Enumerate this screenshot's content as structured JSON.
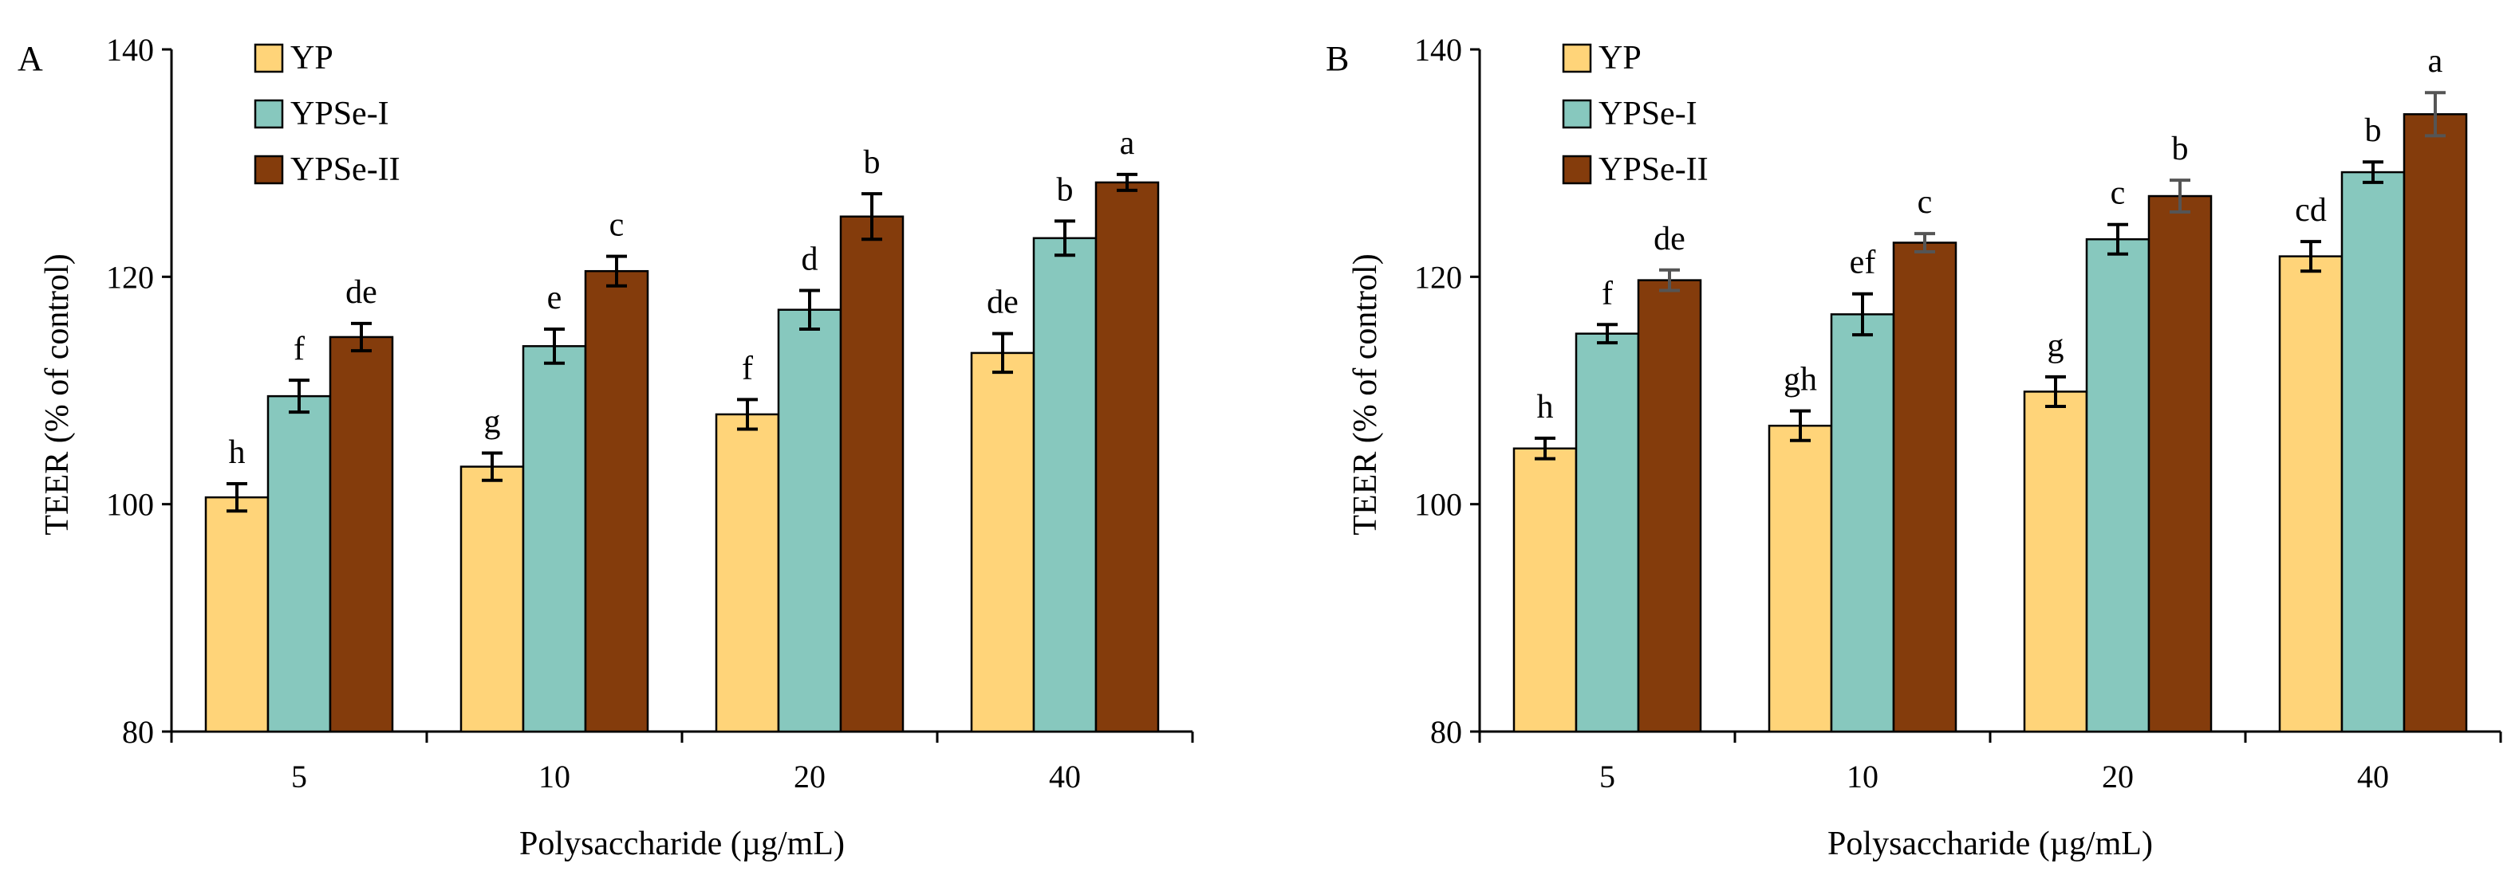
{
  "chart_data": [
    {
      "type": "bar",
      "panel_label": "A",
      "categories": [
        "5",
        "10",
        "20",
        "40"
      ],
      "series": [
        {
          "name": "YP",
          "color": "#FFD479",
          "values": [
            100.6,
            103.3,
            107.9,
            113.3
          ],
          "errors": [
            1.2,
            1.2,
            1.3,
            1.7
          ],
          "letters": [
            "h",
            "g",
            "f",
            "de"
          ]
        },
        {
          "name": "YPSe-I",
          "color": "#87C8BE",
          "values": [
            109.5,
            113.9,
            117.1,
            123.4
          ],
          "errors": [
            1.4,
            1.5,
            1.7,
            1.5
          ],
          "letters": [
            "f",
            "e",
            "d",
            "b"
          ]
        },
        {
          "name": "YPSe-II",
          "color": "#843C0C",
          "values": [
            114.7,
            120.5,
            125.3,
            128.3
          ],
          "errors": [
            1.2,
            1.3,
            2.0,
            0.7
          ],
          "letters": [
            "de",
            "c",
            "b",
            "a"
          ]
        }
      ],
      "title": "",
      "xlabel": "Polysaccharide (µg/mL)",
      "ylabel": "TEER (% of control)",
      "ylim": [
        80,
        140
      ],
      "yticks": [
        "80",
        "100",
        "120",
        "140"
      ],
      "grid": false,
      "legend": "top-left"
    },
    {
      "type": "bar",
      "panel_label": "B",
      "categories": [
        "5",
        "10",
        "20",
        "40"
      ],
      "series": [
        {
          "name": "YP",
          "color": "#FFD479",
          "values": [
            104.9,
            106.9,
            109.9,
            121.8
          ],
          "errors": [
            0.9,
            1.3,
            1.3,
            1.3
          ],
          "letters": [
            "h",
            "gh",
            "g",
            "cd"
          ]
        },
        {
          "name": "YPSe-I",
          "color": "#87C8BE",
          "values": [
            115.0,
            116.7,
            123.3,
            129.2
          ],
          "errors": [
            0.8,
            1.8,
            1.3,
            0.9
          ],
          "letters": [
            "f",
            "ef",
            "c",
            "b"
          ]
        },
        {
          "name": "YPSe-II",
          "color": "#843C0C",
          "values": [
            119.7,
            123.0,
            127.1,
            134.3
          ],
          "errors": [
            0.9,
            0.8,
            1.4,
            1.9
          ],
          "letters": [
            "de",
            "c",
            "b",
            "a"
          ]
        }
      ],
      "title": "",
      "xlabel": "Polysaccharide (µg/mL)",
      "ylabel": "TEER (% of control)",
      "ylim": [
        80,
        140
      ],
      "yticks": [
        "80",
        "100",
        "120",
        "140"
      ],
      "grid": false,
      "legend": "top-left"
    }
  ]
}
